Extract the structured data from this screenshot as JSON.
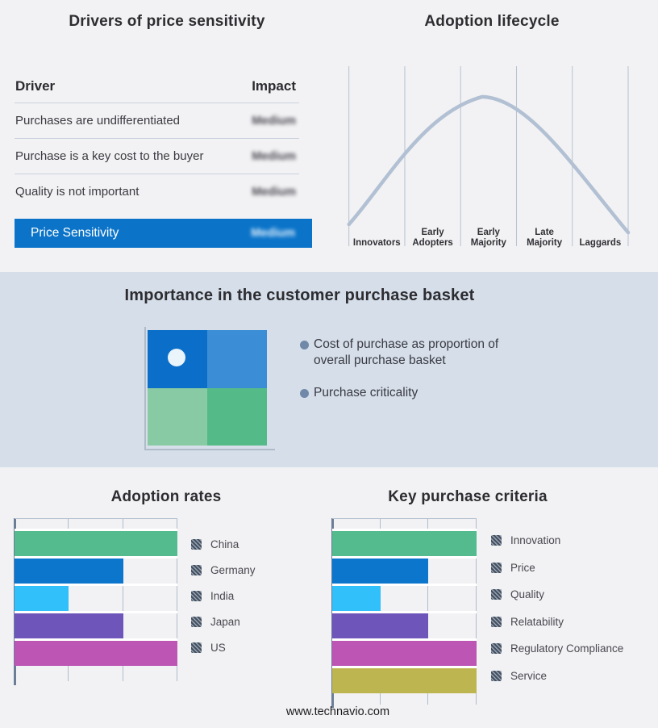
{
  "page": {
    "background": "#f2f2f4",
    "band_background": "#d5dee9",
    "footer_url": "www.technavio.com"
  },
  "drivers_panel": {
    "title": "Drivers of price sensitivity",
    "header": {
      "driver": "Driver",
      "impact": "Impact"
    },
    "rows": [
      {
        "driver": "Purchases are undifferentiated",
        "impact": "Medium"
      },
      {
        "driver": "Purchase is a key cost to the buyer",
        "impact": "Medium"
      },
      {
        "driver": "Quality is not important",
        "impact": "Medium"
      }
    ],
    "highlight_row": {
      "label": "Price Sensitivity",
      "impact": "Medium"
    },
    "highlight_color": "#0b74c9",
    "impact_values_blurred": true
  },
  "basket_panel": {
    "title": "Importance in the customer purchase basket",
    "bullets": [
      "Cost of purchase as proportion of overall purchase basket",
      "Purchase criticality"
    ],
    "quadrant": {
      "top_left": "#0b6fc9",
      "top_right": "#3b8ed5",
      "bottom_left": "#88caa4",
      "bottom_right": "#54bb88",
      "dot_color": "#eaf4fb",
      "dot_meaning": "position marker in low-cost / high-criticality quadrant"
    }
  },
  "chart_data": [
    {
      "id": "lifecycle",
      "type": "line",
      "title": "Adoption lifecycle",
      "categories": [
        "Innovators",
        "Early Adopters",
        "Early Majority",
        "Late Majority",
        "Laggards"
      ],
      "category_lines": [
        [
          "Innovators"
        ],
        [
          "Early",
          "Adopters"
        ],
        [
          "Early",
          "Majority"
        ],
        [
          "Late",
          "Majority"
        ],
        [
          "Laggards"
        ]
      ],
      "curve": "bell-shaped adoption curve peaking in Early Majority",
      "curve_points_norm": [
        [
          0,
          0.879
        ],
        [
          0.136,
          0.641
        ],
        [
          0.266,
          0.26
        ],
        [
          0.477,
          0.17
        ],
        [
          0.642,
          0.179
        ],
        [
          0.8,
          0.552
        ],
        [
          1,
          0.924
        ]
      ],
      "line_color": "#b2c0d3",
      "grid_color": "#b6c1d0",
      "grid": true,
      "legend_position": "none"
    },
    {
      "id": "adoption-rates",
      "type": "bar",
      "orientation": "horizontal",
      "title": "Adoption rates",
      "categories": [
        "China",
        "Germany",
        "India",
        "Japan",
        "US"
      ],
      "values": [
        3,
        2,
        1,
        2,
        3
      ],
      "xlim": [
        0,
        3
      ],
      "colors": [
        "#53bb8d",
        "#0b76cb",
        "#31c0fa",
        "#6d55b9",
        "#bd55b5"
      ],
      "grid": true,
      "legend_position": "right"
    },
    {
      "id": "purchase-criteria",
      "type": "bar",
      "orientation": "horizontal",
      "title": "Key purchase criteria",
      "categories": [
        "Innovation",
        "Price",
        "Quality",
        "Relatability",
        "Regulatory Compliance",
        "Service"
      ],
      "values": [
        3,
        2,
        1,
        2,
        3,
        3
      ],
      "xlim": [
        0,
        3
      ],
      "colors": [
        "#53bb8d",
        "#0b76cb",
        "#31c0fa",
        "#6d55b9",
        "#bd55b5",
        "#bdb650"
      ],
      "grid": true,
      "legend_position": "right"
    }
  ]
}
